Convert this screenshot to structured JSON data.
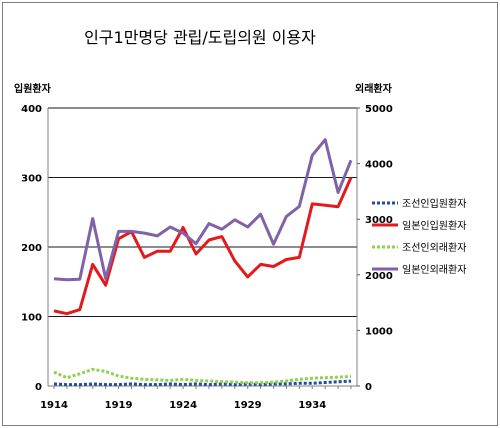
{
  "chart_data": {
    "type": "line",
    "title": "인구1만명당 관립/도립의원 이용자",
    "y_left_label": "입원환자",
    "y_right_label": "외래환자",
    "y_left_lim": [
      0,
      400
    ],
    "y_left_ticks": [
      "0",
      "100",
      "200",
      "300",
      "400"
    ],
    "y_right_lim": [
      0,
      5000
    ],
    "y_right_ticks": [
      "0",
      "1000",
      "2000",
      "3000",
      "4000",
      "5000"
    ],
    "x_ticks": [
      "1914",
      "1919",
      "1924",
      "1929",
      "1934"
    ],
    "x": [
      1914,
      1915,
      1916,
      1917,
      1918,
      1919,
      1920,
      1921,
      1922,
      1923,
      1924,
      1925,
      1926,
      1927,
      1928,
      1929,
      1930,
      1931,
      1932,
      1933,
      1934,
      1935,
      1936,
      1937
    ],
    "legend_position": "right",
    "series": [
      {
        "name": "조선인입원환자",
        "axis": "left",
        "color": "#1f4e9c",
        "style": "dotted",
        "values": [
          3,
          2,
          2,
          3,
          2,
          2,
          3,
          2,
          2,
          3,
          2,
          3,
          2,
          3,
          2,
          3,
          2,
          3,
          3,
          4,
          4,
          5,
          6,
          7
        ]
      },
      {
        "name": "일본인입원환자",
        "axis": "left",
        "color": "#e31a1c",
        "style": "solid",
        "values": [
          108,
          104,
          110,
          175,
          145,
          212,
          222,
          185,
          194,
          194,
          228,
          190,
          210,
          215,
          180,
          157,
          175,
          172,
          182,
          185,
          262,
          260,
          258,
          300
        ]
      },
      {
        "name": "조선인외래환자",
        "axis": "right",
        "color": "#92d050",
        "style": "dotted",
        "values": [
          250,
          150,
          220,
          300,
          260,
          180,
          140,
          120,
          110,
          100,
          120,
          100,
          90,
          80,
          70,
          60,
          60,
          70,
          90,
          120,
          140,
          150,
          160,
          170
        ]
      },
      {
        "name": "일본인외래환자",
        "axis": "right",
        "color": "#7f62a8",
        "style": "solid",
        "values": [
          1930,
          1910,
          1920,
          3010,
          1930,
          2780,
          2780,
          2750,
          2700,
          2860,
          2750,
          2560,
          2920,
          2820,
          2990,
          2860,
          3090,
          2550,
          3050,
          3230,
          4150,
          4430,
          3480,
          4060
        ]
      }
    ]
  }
}
